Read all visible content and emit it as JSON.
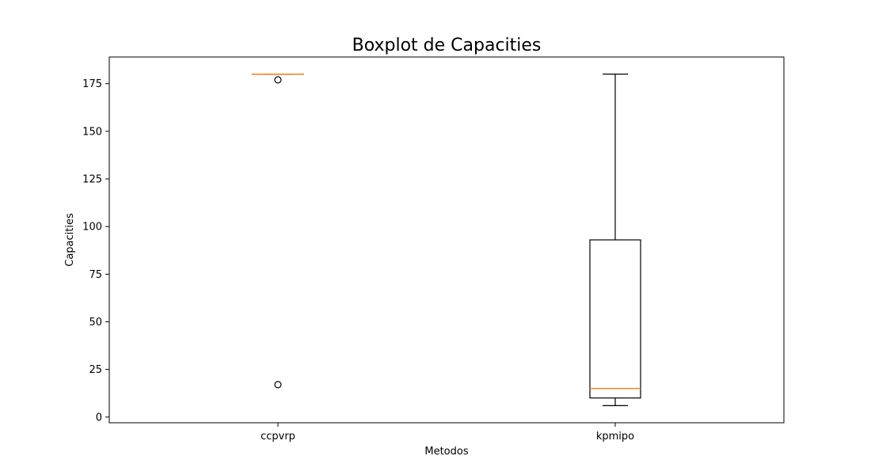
{
  "chart_data": {
    "type": "box",
    "title": "Boxplot de Capacities",
    "xlabel": "Metodos",
    "ylabel": "Capacities",
    "categories": [
      "ccpvrp",
      "kpmipo"
    ],
    "ylim": [
      -3,
      189
    ],
    "yticks": [
      0,
      25,
      50,
      75,
      100,
      125,
      150,
      175
    ],
    "grid": false,
    "series": [
      {
        "category": "ccpvrp",
        "whisker_low": 180,
        "q1": 180,
        "median": 180,
        "q3": 180,
        "whisker_high": 180,
        "outliers": [
          177,
          17
        ]
      },
      {
        "category": "kpmipo",
        "whisker_low": 6,
        "q1": 10,
        "median": 15,
        "q3": 93,
        "whisker_high": 180,
        "outliers": []
      }
    ],
    "colors": {
      "box": "#000000",
      "median": "#ff7f0e",
      "frame": "#000000"
    }
  }
}
